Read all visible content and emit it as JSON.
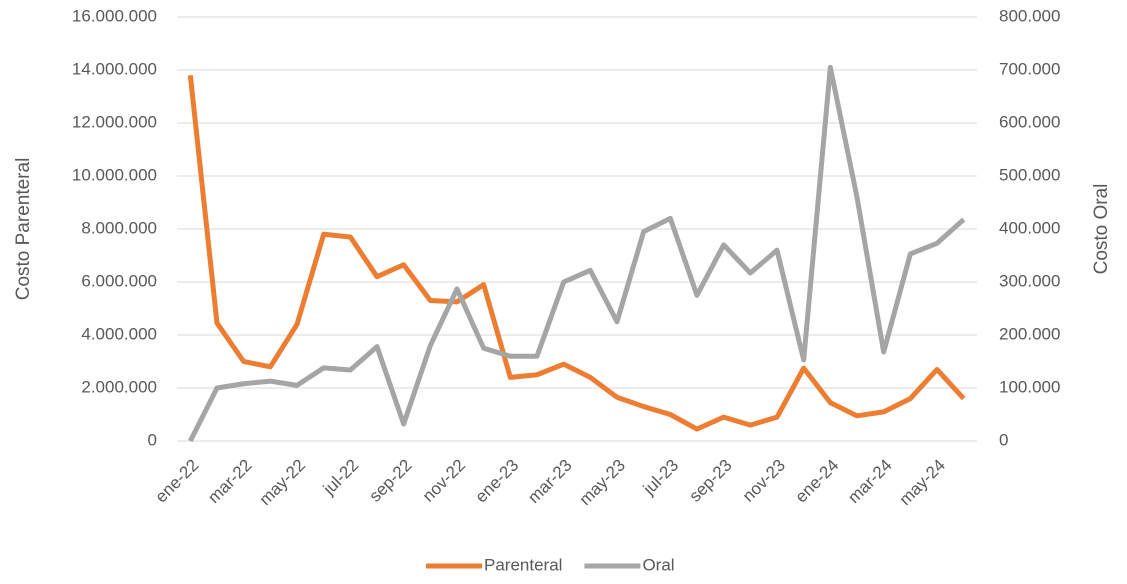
{
  "chart_data": {
    "type": "line",
    "categories": [
      "ene-22",
      null,
      "mar-22",
      null,
      "may-22",
      null,
      "jul-22",
      null,
      "sep-22",
      null,
      "nov-22",
      null,
      "ene-23",
      null,
      "mar-23",
      null,
      "may-23",
      null,
      "jul-23",
      null,
      "sep-23",
      null,
      "nov-23",
      null,
      "ene-24",
      null,
      "mar-24",
      null,
      "may-24",
      null
    ],
    "series": [
      {
        "name": "Parenteral",
        "color": "#ed7d31",
        "values": [
          13800000,
          4450000,
          3000000,
          2800000,
          4400000,
          7800000,
          7700000,
          6200000,
          6650000,
          5300000,
          5250000,
          5900000,
          2400000,
          2500000,
          2900000,
          2400000,
          1650000,
          1300000,
          1000000,
          450000,
          900000,
          600000,
          900000,
          2750000,
          1450000,
          950000,
          1100000,
          1600000,
          2700000,
          1600000
        ]
      },
      {
        "name": "Oral",
        "color": "#a5a5a5",
        "axis": "y2",
        "values": [
          0,
          100000,
          108000,
          113000,
          105000,
          138000,
          134000,
          178000,
          32000,
          180000,
          287000,
          175000,
          160000,
          160000,
          300000,
          322000,
          225000,
          395000,
          420000,
          275000,
          370000,
          317000,
          360000,
          153000,
          705000,
          460000,
          168000,
          353000,
          373000,
          418000
        ]
      }
    ],
    "ylabel": "Costo Parenteral",
    "y2label": "Costo Oral",
    "ylim": [
      0,
      16000000
    ],
    "yticks": [
      0,
      {
        "value": 2000000,
        "label": "2.000.000"
      },
      {
        "value": 4000000,
        "label": "4.000.000"
      },
      {
        "value": 6000000,
        "label": "6.000.000"
      },
      {
        "value": 8000000,
        "label": "8.000.000"
      },
      {
        "value": 10000000,
        "label": "10.000.000"
      },
      {
        "value": 12000000,
        "label": "12.000.000"
      },
      {
        "value": 14000000,
        "label": "14.000.000"
      },
      {
        "value": 16000000,
        "label": "16.000.000"
      }
    ],
    "y2lim": [
      0,
      800000
    ],
    "y2ticks": [
      0,
      {
        "value": 100000,
        "label": "100.000"
      },
      {
        "value": 200000,
        "label": "200.000"
      },
      {
        "value": 300000,
        "label": "300.000"
      },
      {
        "value": 400000,
        "label": "400.000"
      },
      {
        "value": 500000,
        "label": "500.000"
      },
      {
        "value": 600000,
        "label": "600.000"
      },
      {
        "value": 700000,
        "label": "700.000"
      },
      {
        "value": 800000,
        "label": "800.000"
      }
    ],
    "grid": true,
    "legend": "bottom"
  }
}
